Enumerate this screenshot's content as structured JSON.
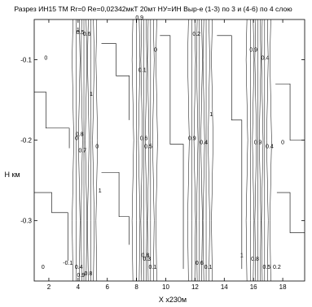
{
  "chart_data": {
    "type": "contour",
    "title": "Разрез ИН15 ТМ Rr=0    Re=0,02342мкТ    20мт НУ=ИН Выр-е (1-3) по 3 и (4-6) по 4 слою",
    "xlabel": "X x230м",
    "ylabel": "H км",
    "xlim": [
      1,
      19.5
    ],
    "ylim": [
      -0.375,
      -0.05
    ],
    "xticks": [
      2,
      4,
      6,
      8,
      10,
      12,
      14,
      16,
      18
    ],
    "xtick_labels": [
      "2",
      "4",
      "6",
      "8",
      "10",
      "12",
      "14",
      "16",
      "18"
    ],
    "yticks": [
      -0.1,
      -0.2,
      -0.3
    ],
    "ytick_labels": [
      "-0.1",
      "-0.2",
      "-0.3"
    ],
    "grid": false,
    "anomaly_centers_x": [
      4.5,
      8.6,
      12.4,
      16.4
    ],
    "contour_levels": [
      -0.1,
      0,
      0.1,
      0.2,
      0.3,
      0.4,
      0.5,
      0.6,
      0.7,
      0.8,
      0.9,
      1
    ],
    "contour_labels": [
      {
        "x": 1.8,
        "y": -0.1,
        "text": "0"
      },
      {
        "x": 1.6,
        "y": -0.36,
        "text": "0"
      },
      {
        "x": 3.3,
        "y": -0.355,
        "text": "-0.1"
      },
      {
        "x": 3.9,
        "y": -0.2,
        "text": "0"
      },
      {
        "x": 4.0,
        "y": -0.065,
        "text": "1"
      },
      {
        "x": 4.05,
        "y": -0.36,
        "text": "0.4"
      },
      {
        "x": 4.1,
        "y": -0.195,
        "text": "0.8"
      },
      {
        "x": 4.15,
        "y": -0.068,
        "text": "0.5"
      },
      {
        "x": 4.2,
        "y": -0.37,
        "text": "0.9"
      },
      {
        "x": 4.3,
        "y": -0.215,
        "text": "0.7"
      },
      {
        "x": 4.6,
        "y": -0.07,
        "text": "0.6"
      },
      {
        "x": 4.7,
        "y": -0.368,
        "text": "0.8"
      },
      {
        "x": 4.9,
        "y": -0.145,
        "text": "1"
      },
      {
        "x": 5.3,
        "y": -0.21,
        "text": "0"
      },
      {
        "x": 5.5,
        "y": -0.265,
        "text": "1"
      },
      {
        "x": 8.2,
        "y": -0.05,
        "text": "0.9"
      },
      {
        "x": 8.4,
        "y": -0.115,
        "text": "0.1"
      },
      {
        "x": 8.5,
        "y": -0.2,
        "text": "0.6"
      },
      {
        "x": 8.6,
        "y": -0.345,
        "text": "0.8"
      },
      {
        "x": 8.7,
        "y": -0.35,
        "text": "0.3"
      },
      {
        "x": 8.8,
        "y": -0.21,
        "text": "0.5"
      },
      {
        "x": 9.1,
        "y": -0.36,
        "text": "0.1"
      },
      {
        "x": 9.3,
        "y": -0.09,
        "text": "0"
      },
      {
        "x": 11.8,
        "y": -0.2,
        "text": "0.9"
      },
      {
        "x": 12.1,
        "y": -0.07,
        "text": "0.2"
      },
      {
        "x": 12.3,
        "y": -0.355,
        "text": "0.6"
      },
      {
        "x": 12.6,
        "y": -0.205,
        "text": "0.4"
      },
      {
        "x": 12.9,
        "y": -0.36,
        "text": "0.1"
      },
      {
        "x": 13.1,
        "y": -0.17,
        "text": "1"
      },
      {
        "x": 15.2,
        "y": -0.345,
        "text": "1"
      },
      {
        "x": 16.0,
        "y": -0.09,
        "text": "0.9"
      },
      {
        "x": 16.1,
        "y": -0.35,
        "text": "0.8"
      },
      {
        "x": 16.3,
        "y": -0.205,
        "text": "0.9"
      },
      {
        "x": 16.8,
        "y": -0.1,
        "text": "0.4"
      },
      {
        "x": 16.9,
        "y": -0.36,
        "text": "0.5"
      },
      {
        "x": 17.1,
        "y": -0.21,
        "text": "0.4"
      },
      {
        "x": 17.6,
        "y": -0.36,
        "text": "0.2"
      },
      {
        "x": 18.0,
        "y": -0.205,
        "text": "0"
      }
    ]
  }
}
